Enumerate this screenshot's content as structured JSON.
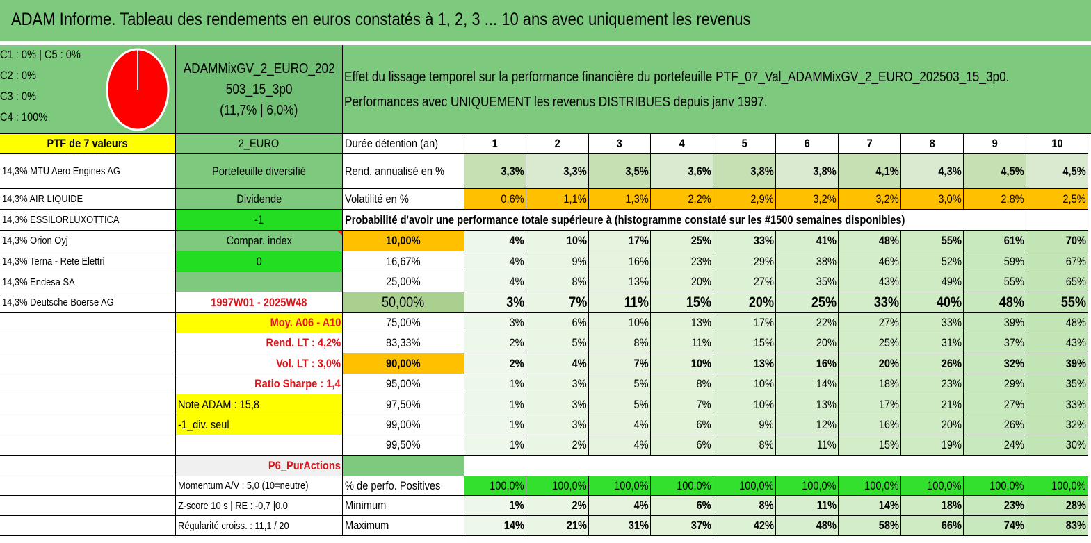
{
  "title": "ADAM Informe. Tableau des rendements en euros constatés à 1, 2, 3 ... 10 ans avec uniquement les revenus",
  "allocation": {
    "lines": [
      "C1 : 0% | C5 : 0%",
      "C2 : 0%",
      "C3 : 0%",
      "C4 : 100%"
    ],
    "pie_color": "#ff0000",
    "pie_share_c4": 1.0
  },
  "portfolio": {
    "name_line1": "ADAMMixGV_2_EURO_202",
    "name_line2": "503_15_3p0",
    "name_line3": "(11,7% | 6,0%)",
    "description_line1": "Effet du lissage temporel sur la performance financière du portefeuille PTF_07_Val_ADAMMixGV_2_EURO_202503_15_3p0.",
    "description_line2": "Performances avec UNIQUEMENT les revenus DISTRIBUES depuis janv 1997.",
    "ptf_label": "PTF de 7 valeurs",
    "currency": "2_EURO"
  },
  "holdings": [
    "14,3% MTU Aero Engines AG",
    "14,3% AIR LIQUIDE",
    "14,3% ESSILORLUXOTTICA",
    "14,3% Orion Oyj",
    "14,3% Terna - Rete Elettri",
    "14,3% Endesa SA",
    "14,3% Deutsche Boerse AG"
  ],
  "info": {
    "type": "Portefeuille diversifié",
    "income": "Dividende",
    "signal": "-1",
    "compar_label": "Compar. index",
    "compar_value": "0",
    "period": "1997W01 - 2025W48",
    "avg": "Moy. A06 - A10",
    "rend_lt": "Rend. LT : 4,2%",
    "vol_lt": "Vol. LT : 3,0%",
    "sharpe": "Ratio Sharpe : 1,4",
    "note": "Note ADAM : 15,8",
    "div_only": "-1_div. seul",
    "category": "P6_PurActions",
    "momentum": "Momentum A/V : 5,0 (10=neutre)",
    "zscore": "Z-score 10 s | RE : -0,7 |0,0",
    "regularity": "Régularité croiss. : 11,1 / 20"
  },
  "table": {
    "duration_label": "Durée détention (an)",
    "years": [
      "1",
      "2",
      "3",
      "4",
      "5",
      "6",
      "7",
      "8",
      "9",
      "10"
    ],
    "rend_label": "Rend. annualisé en %",
    "rend": [
      "3,3%",
      "3,3%",
      "3,5%",
      "3,6%",
      "3,8%",
      "3,8%",
      "4,1%",
      "4,3%",
      "4,5%",
      "4,5%"
    ],
    "vol_label": "Volatilité en %",
    "vol": [
      "0,6%",
      "1,1%",
      "1,3%",
      "2,2%",
      "2,9%",
      "3,2%",
      "3,2%",
      "3,0%",
      "2,8%",
      "2,5%"
    ],
    "prob_header": "Probabilité d'avoir une performance totale supérieure à (histogramme constaté sur les #1500 semaines disponibles)",
    "prob_rows": [
      {
        "level": "10,00%",
        "values": [
          "4%",
          "10%",
          "17%",
          "25%",
          "33%",
          "41%",
          "48%",
          "55%",
          "61%",
          "70%"
        ]
      },
      {
        "level": "16,67%",
        "values": [
          "4%",
          "9%",
          "16%",
          "23%",
          "29%",
          "38%",
          "46%",
          "52%",
          "59%",
          "67%"
        ]
      },
      {
        "level": "25,00%",
        "values": [
          "4%",
          "8%",
          "13%",
          "20%",
          "27%",
          "35%",
          "43%",
          "49%",
          "55%",
          "65%"
        ]
      },
      {
        "level": "50,00%",
        "values": [
          "3%",
          "7%",
          "11%",
          "15%",
          "20%",
          "25%",
          "33%",
          "40%",
          "48%",
          "55%"
        ]
      },
      {
        "level": "75,00%",
        "values": [
          "3%",
          "6%",
          "10%",
          "13%",
          "17%",
          "22%",
          "27%",
          "33%",
          "39%",
          "48%"
        ]
      },
      {
        "level": "83,33%",
        "values": [
          "2%",
          "5%",
          "8%",
          "11%",
          "15%",
          "20%",
          "25%",
          "31%",
          "37%",
          "43%"
        ]
      },
      {
        "level": "90,00%",
        "values": [
          "2%",
          "4%",
          "7%",
          "10%",
          "13%",
          "16%",
          "20%",
          "26%",
          "32%",
          "39%"
        ]
      },
      {
        "level": "95,00%",
        "values": [
          "1%",
          "3%",
          "5%",
          "8%",
          "10%",
          "14%",
          "18%",
          "23%",
          "29%",
          "35%"
        ]
      },
      {
        "level": "97,50%",
        "values": [
          "1%",
          "3%",
          "5%",
          "7%",
          "10%",
          "13%",
          "17%",
          "21%",
          "27%",
          "33%"
        ]
      },
      {
        "level": "99,00%",
        "values": [
          "1%",
          "3%",
          "4%",
          "6%",
          "9%",
          "12%",
          "16%",
          "20%",
          "26%",
          "32%"
        ]
      },
      {
        "level": "99,50%",
        "values": [
          "1%",
          "2%",
          "4%",
          "6%",
          "8%",
          "11%",
          "15%",
          "19%",
          "24%",
          "30%"
        ]
      }
    ],
    "pos_label": "% de perfo. Positives",
    "pos": [
      "100,0%",
      "100,0%",
      "100,0%",
      "100,0%",
      "100,0%",
      "100,0%",
      "100,0%",
      "100,0%",
      "100,0%",
      "100,0%"
    ],
    "min_label": "Minimum",
    "min": [
      "1%",
      "2%",
      "4%",
      "6%",
      "8%",
      "11%",
      "14%",
      "18%",
      "23%",
      "28%"
    ],
    "max_label": "Maximum",
    "max": [
      "14%",
      "21%",
      "31%",
      "37%",
      "42%",
      "48%",
      "58%",
      "66%",
      "74%",
      "83%"
    ]
  }
}
